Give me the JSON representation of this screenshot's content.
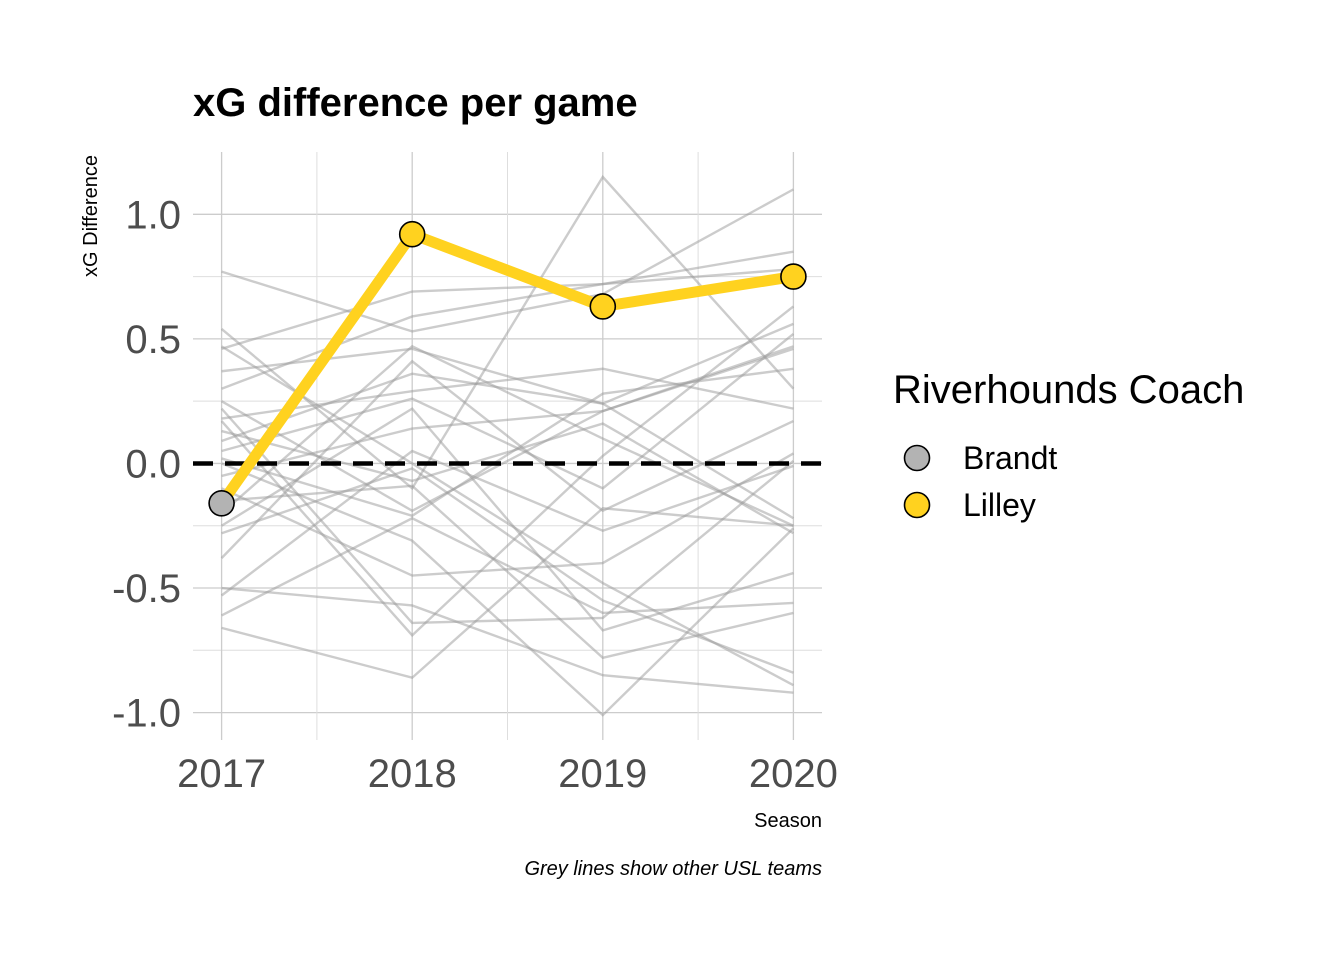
{
  "chart_data": {
    "type": "line",
    "title": "xG difference per game",
    "xlabel": "Season",
    "ylabel": "xG Difference",
    "caption": "Grey lines show other USL teams",
    "x": [
      2017,
      2018,
      2019,
      2020
    ],
    "x_ticks": [
      "2017",
      "2018",
      "2019",
      "2020"
    ],
    "y_ticks": [
      {
        "value": 1.0,
        "label": "1.0"
      },
      {
        "value": 0.5,
        "label": "0.5"
      },
      {
        "value": 0.0,
        "label": "0.0"
      },
      {
        "value": -0.5,
        "label": "-0.5"
      },
      {
        "value": -1.0,
        "label": "-1.0"
      }
    ],
    "xlim": [
      2016.85,
      2020.15
    ],
    "ylim": [
      -1.11,
      1.25
    ],
    "grid": true,
    "reference_line": {
      "y": 0,
      "style": "dashed",
      "color": "#000000"
    },
    "highlight": {
      "x": [
        2017,
        2018,
        2019,
        2020
      ],
      "values": [
        -0.16,
        0.92,
        0.63,
        0.75
      ],
      "coach": [
        "Brandt",
        "Lilley",
        "Lilley",
        "Lilley"
      ],
      "line_color": "#ffd21f"
    },
    "legend": {
      "title": "Riverhounds Coach",
      "position": "right",
      "entries": [
        {
          "label": "Brandt",
          "color": "#b3b3b3"
        },
        {
          "label": "Lilley",
          "color": "#ffd21f"
        }
      ]
    },
    "background_series_color": "#999999",
    "background_series": [
      {
        "x": [
          2017,
          2018,
          2019,
          2020
        ],
        "values": [
          0.77,
          0.53,
          0.68,
          1.1
        ]
      },
      {
        "x": [
          2017,
          2018,
          2019,
          2020
        ],
        "values": [
          0.54,
          -0.1,
          1.15,
          0.3
        ]
      },
      {
        "x": [
          2017,
          2018,
          2019,
          2020
        ],
        "values": [
          0.46,
          0.69,
          0.72,
          0.85
        ]
      },
      {
        "x": [
          2017,
          2018,
          2019,
          2020
        ],
        "values": [
          0.37,
          0.46,
          0.24,
          -0.22
        ]
      },
      {
        "x": [
          2017,
          2018,
          2019,
          2020
        ],
        "values": [
          0.3,
          0.59,
          0.72,
          0.78
        ]
      },
      {
        "x": [
          2017,
          2018,
          2019,
          2020
        ],
        "values": [
          0.25,
          -0.19,
          0.21,
          0.46
        ]
      },
      {
        "x": [
          2017,
          2018,
          2019,
          2020
        ],
        "values": [
          0.18,
          0.29,
          0.38,
          0.22
        ]
      },
      {
        "x": [
          2017,
          2018,
          2019,
          2020
        ],
        "values": [
          0.13,
          -0.07,
          0.16,
          -0.28
        ]
      },
      {
        "x": [
          2017,
          2018,
          2019,
          2020
        ],
        "values": [
          0.09,
          0.36,
          0.24,
          0.56
        ]
      },
      {
        "x": [
          2017,
          2018,
          2019,
          2020
        ],
        "values": [
          0.05,
          0.26,
          -0.1,
          0.52
        ]
      },
      {
        "x": [
          2017,
          2018,
          2019,
          2020
        ],
        "values": [
          0.02,
          -0.21,
          0.28,
          0.38
        ]
      },
      {
        "x": [
          2017,
          2018,
          2019,
          2020
        ],
        "values": [
          -0.05,
          0.14,
          0.21,
          0.47
        ]
      },
      {
        "x": [
          2017,
          2018,
          2019,
          2020
        ],
        "values": [
          -0.1,
          -0.45,
          -0.4,
          0.04
        ]
      },
      {
        "x": [
          2017,
          2018,
          2019,
          2020
        ],
        "values": [
          -0.2,
          0.47,
          0.1,
          -0.25
        ]
      },
      {
        "x": [
          2017,
          2018,
          2019,
          2020
        ],
        "values": [
          -0.28,
          -0.02,
          -0.55,
          -0.84
        ]
      },
      {
        "x": [
          2017,
          2018,
          2019,
          2020
        ],
        "values": [
          -0.38,
          0.41,
          -0.19,
          0.17
        ]
      },
      {
        "x": [
          2017,
          2018,
          2019,
          2020
        ],
        "values": [
          -0.5,
          -0.57,
          -0.85,
          -0.92
        ]
      },
      {
        "x": [
          2017,
          2018,
          2019,
          2020
        ],
        "values": [
          -0.53,
          0.05,
          -0.27,
          -0.01
        ]
      },
      {
        "x": [
          2017,
          2018,
          2019,
          2020
        ],
        "values": [
          -0.61,
          -0.22,
          -0.6,
          -0.56
        ]
      },
      {
        "x": [
          2017,
          2018,
          2019,
          2020
        ],
        "values": [
          -0.66,
          -0.86,
          -0.18,
          -0.25
        ]
      },
      {
        "x": [
          2017,
          2018,
          2019,
          2020
        ],
        "values": [
          0.22,
          -0.64,
          -0.62,
          0.01
        ]
      },
      {
        "x": [
          2017,
          2018,
          2019,
          2020
        ],
        "values": [
          -0.15,
          -0.09,
          -0.78,
          -0.6
        ]
      },
      {
        "x": [
          2017,
          2018,
          2019,
          2020
        ],
        "values": [
          0.0,
          -0.31,
          -1.01,
          -0.26
        ]
      },
      {
        "x": [
          2017,
          2018,
          2019,
          2020
        ],
        "values": [
          0.47,
          0.0,
          -0.48,
          -0.89
        ]
      },
      {
        "x": [
          2017,
          2018,
          2019,
          2020
        ],
        "values": [
          0.17,
          -0.69,
          0.03,
          0.63
        ]
      },
      {
        "x": [
          2017,
          2018,
          2019,
          2020
        ],
        "values": [
          -0.25,
          0.22,
          -0.67,
          -0.44
        ]
      }
    ]
  }
}
